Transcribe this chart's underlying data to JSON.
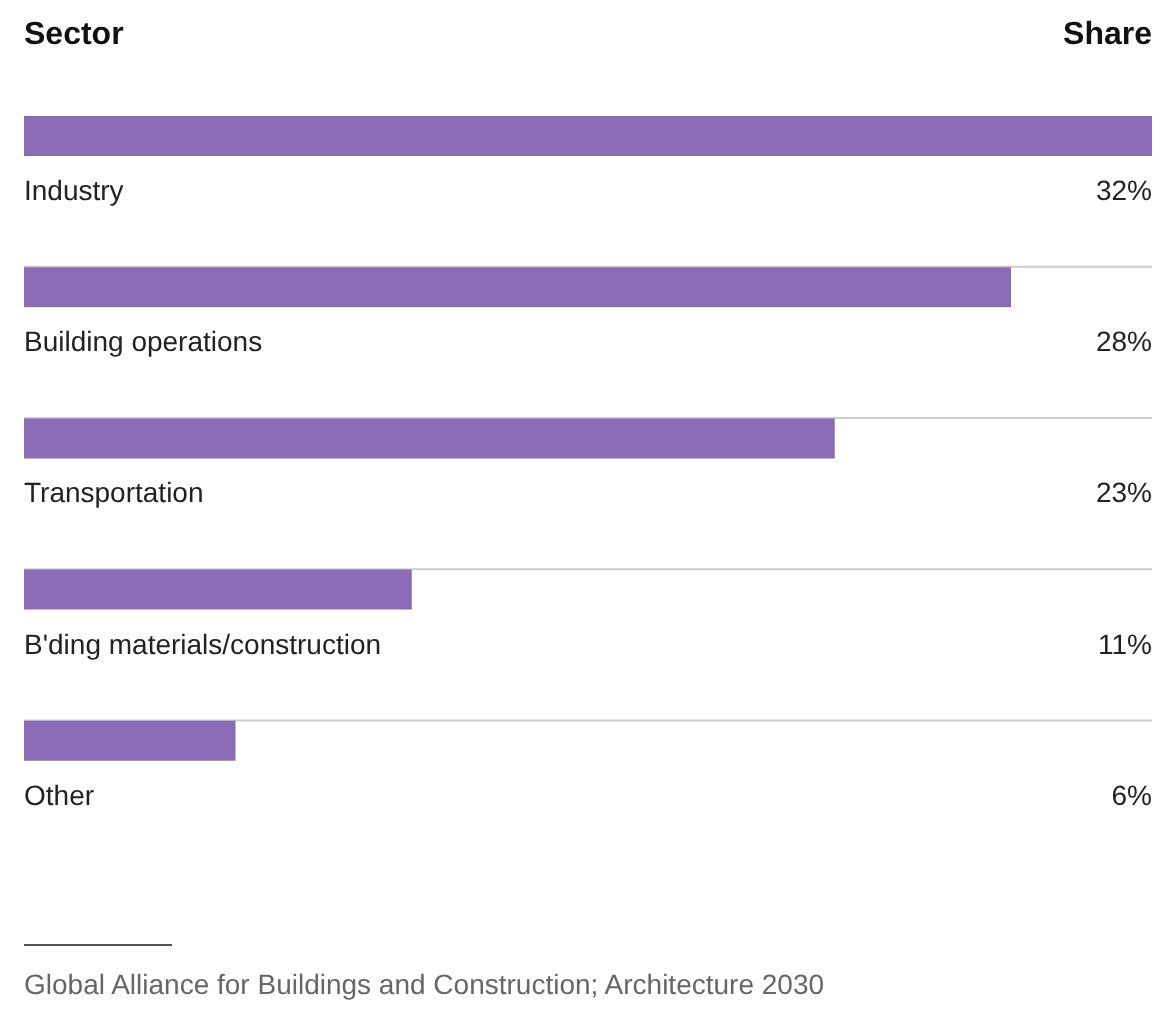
{
  "chart_data": {
    "type": "bar",
    "orientation": "horizontal",
    "xlabel": "Share",
    "ylabel": "Sector",
    "categories": [
      "Industry",
      "Building operations",
      "Transportation",
      "B'ding materials/construction",
      "Other"
    ],
    "values": [
      32,
      28,
      23,
      11,
      6
    ],
    "value_labels": [
      "32%",
      "28%",
      "23%",
      "11%",
      "6%"
    ],
    "color": "#8a6bb5",
    "xlim": [
      0,
      32
    ],
    "annotations": [
      "Global Alliance for Buildings and Construction; Architecture 2030"
    ]
  }
}
